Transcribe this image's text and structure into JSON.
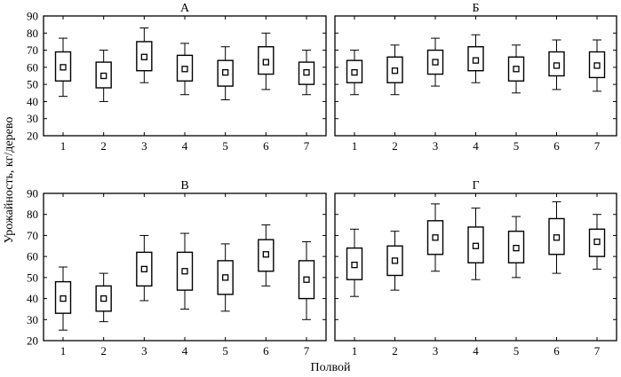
{
  "chart_data": {
    "type": "box",
    "ylabel": "Урожайность, кг/дерево",
    "xlabel": "Полвой",
    "ylim": [
      20,
      90
    ],
    "yticks": [
      20,
      30,
      40,
      50,
      60,
      70,
      80,
      90
    ],
    "categories": [
      "1",
      "2",
      "3",
      "4",
      "5",
      "6",
      "7"
    ],
    "panels": [
      {
        "title": "А",
        "boxes": [
          {
            "min": 43,
            "q1": 52,
            "mean": 60,
            "q3": 69,
            "max": 77
          },
          {
            "min": 40,
            "q1": 48,
            "mean": 55,
            "q3": 63,
            "max": 70
          },
          {
            "min": 51,
            "q1": 58,
            "mean": 66,
            "q3": 75,
            "max": 83
          },
          {
            "min": 44,
            "q1": 52,
            "mean": 59,
            "q3": 67,
            "max": 74
          },
          {
            "min": 41,
            "q1": 49,
            "mean": 57,
            "q3": 64,
            "max": 72
          },
          {
            "min": 47,
            "q1": 56,
            "mean": 63,
            "q3": 72,
            "max": 80
          },
          {
            "min": 44,
            "q1": 50,
            "mean": 57,
            "q3": 63,
            "max": 70
          }
        ]
      },
      {
        "title": "Б",
        "boxes": [
          {
            "min": 44,
            "q1": 51,
            "mean": 57,
            "q3": 64,
            "max": 70
          },
          {
            "min": 44,
            "q1": 51,
            "mean": 58,
            "q3": 66,
            "max": 73
          },
          {
            "min": 49,
            "q1": 56,
            "mean": 63,
            "q3": 70,
            "max": 77
          },
          {
            "min": 51,
            "q1": 58,
            "mean": 64,
            "q3": 72,
            "max": 79
          },
          {
            "min": 45,
            "q1": 52,
            "mean": 59,
            "q3": 66,
            "max": 73
          },
          {
            "min": 47,
            "q1": 55,
            "mean": 61,
            "q3": 69,
            "max": 76
          },
          {
            "min": 46,
            "q1": 54,
            "mean": 61,
            "q3": 69,
            "max": 76
          }
        ]
      },
      {
        "title": "В",
        "boxes": [
          {
            "min": 25,
            "q1": 33,
            "mean": 40,
            "q3": 48,
            "max": 55
          },
          {
            "min": 29,
            "q1": 34,
            "mean": 40,
            "q3": 46,
            "max": 52
          },
          {
            "min": 39,
            "q1": 46,
            "mean": 54,
            "q3": 62,
            "max": 70
          },
          {
            "min": 35,
            "q1": 44,
            "mean": 53,
            "q3": 62,
            "max": 71
          },
          {
            "min": 34,
            "q1": 42,
            "mean": 50,
            "q3": 58,
            "max": 66
          },
          {
            "min": 46,
            "q1": 53,
            "mean": 61,
            "q3": 68,
            "max": 75
          },
          {
            "min": 30,
            "q1": 40,
            "mean": 49,
            "q3": 58,
            "max": 67
          }
        ]
      },
      {
        "title": "Г",
        "boxes": [
          {
            "min": 41,
            "q1": 49,
            "mean": 56,
            "q3": 64,
            "max": 73
          },
          {
            "min": 44,
            "q1": 51,
            "mean": 58,
            "q3": 65,
            "max": 72
          },
          {
            "min": 53,
            "q1": 61,
            "mean": 69,
            "q3": 77,
            "max": 85
          },
          {
            "min": 49,
            "q1": 57,
            "mean": 65,
            "q3": 74,
            "max": 83
          },
          {
            "min": 50,
            "q1": 57,
            "mean": 64,
            "q3": 72,
            "max": 79
          },
          {
            "min": 52,
            "q1": 61,
            "mean": 69,
            "q3": 78,
            "max": 86
          },
          {
            "min": 54,
            "q1": 60,
            "mean": 67,
            "q3": 73,
            "max": 80
          }
        ]
      }
    ]
  }
}
